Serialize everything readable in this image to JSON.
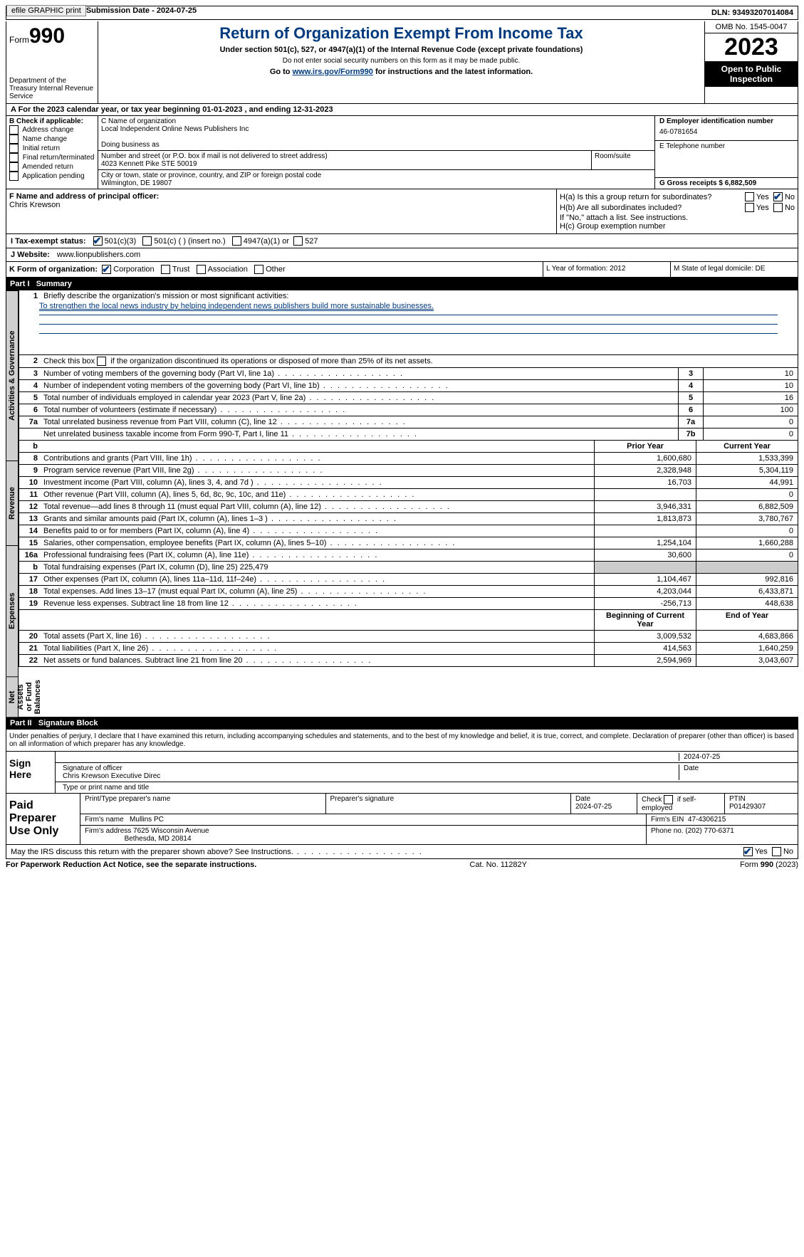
{
  "topbar": {
    "efile": "efile GRAPHIC print",
    "submission_label": "Submission Date - 2024-07-25",
    "dln_label": "DLN: 93493207014084"
  },
  "header": {
    "form_word": "Form",
    "form_num": "990",
    "dept": "Department of the Treasury Internal Revenue Service",
    "title": "Return of Organization Exempt From Income Tax",
    "subtitle": "Under section 501(c), 527, or 4947(a)(1) of the Internal Revenue Code (except private foundations)",
    "note1": "Do not enter social security numbers on this form as it may be made public.",
    "note2_pre": "Go to ",
    "note2_link": "www.irs.gov/Form990",
    "note2_post": " for instructions and the latest information.",
    "omb": "OMB No. 1545-0047",
    "year": "2023",
    "open": "Open to Public Inspection"
  },
  "lineA": "A For the 2023 calendar year, or tax year beginning 01-01-2023   , and ending 12-31-2023",
  "boxB": {
    "label": "B Check if applicable:",
    "opts": [
      "Address change",
      "Name change",
      "Initial return",
      "Final return/terminated",
      "Amended return",
      "Application pending"
    ]
  },
  "boxC": {
    "name_label": "C Name of organization",
    "name": "Local Independent Online News Publishers Inc",
    "dba_label": "Doing business as",
    "addr_label": "Number and street (or P.O. box if mail is not delivered to street address)",
    "addr": "4023 Kennett Pike STE 50019",
    "room_label": "Room/suite",
    "city_label": "City or town, state or province, country, and ZIP or foreign postal code",
    "city": "Wilmington, DE  19807"
  },
  "boxD": {
    "label": "D Employer identification number",
    "value": "46-0781654"
  },
  "boxE": {
    "label": "E Telephone number"
  },
  "boxG": {
    "label": "G Gross receipts $ 6,882,509"
  },
  "boxF": {
    "label": "F  Name and address of principal officer:",
    "value": "Chris Krewson"
  },
  "boxH": {
    "a": "H(a)  Is this a group return for subordinates?",
    "b": "H(b)  Are all subordinates included?",
    "note": "If \"No,\" attach a list. See instructions.",
    "c": "H(c)  Group exemption number",
    "yes": "Yes",
    "no": "No"
  },
  "boxI": {
    "label": "I   Tax-exempt status:",
    "o1": "501(c)(3)",
    "o2": "501(c) (  ) (insert no.)",
    "o3": "4947(a)(1) or",
    "o4": "527"
  },
  "boxJ": {
    "label": "J   Website:",
    "value": "www.lionpublishers.com"
  },
  "boxK": {
    "label": "K Form of organization:",
    "o1": "Corporation",
    "o2": "Trust",
    "o3": "Association",
    "o4": "Other"
  },
  "boxL": {
    "label": "L Year of formation: 2012"
  },
  "boxM": {
    "label": "M State of legal domicile: DE"
  },
  "part1": {
    "num": "Part I",
    "title": "Summary"
  },
  "vert": {
    "ag": "Activities & Governance",
    "rev": "Revenue",
    "exp": "Expenses",
    "na": "Net Assets or Fund Balances"
  },
  "line1": {
    "num": "1",
    "label": "Briefly describe the organization's mission or most significant activities:",
    "text": "To strengthen the local news industry by helping independent news publishers build more sustainable businesses."
  },
  "line2": {
    "num": "2",
    "label": "Check this box        if the organization discontinued its operations or disposed of more than 25% of its net assets."
  },
  "govlines": [
    {
      "n": "3",
      "d": "Number of voting members of the governing body (Part VI, line 1a)",
      "bn": "3",
      "v": "10"
    },
    {
      "n": "4",
      "d": "Number of independent voting members of the governing body (Part VI, line 1b)",
      "bn": "4",
      "v": "10"
    },
    {
      "n": "5",
      "d": "Total number of individuals employed in calendar year 2023 (Part V, line 2a)",
      "bn": "5",
      "v": "16"
    },
    {
      "n": "6",
      "d": "Total number of volunteers (estimate if necessary)",
      "bn": "6",
      "v": "100"
    },
    {
      "n": "7a",
      "d": "Total unrelated business revenue from Part VIII, column (C), line 12",
      "bn": "7a",
      "v": "0"
    },
    {
      "n": "",
      "d": "Net unrelated business taxable income from Form 990-T, Part I, line 11",
      "bn": "7b",
      "v": "0"
    }
  ],
  "colheader": {
    "prior": "Prior Year",
    "current": "Current Year",
    "begin": "Beginning of Current Year",
    "end": "End of Year"
  },
  "revlines": [
    {
      "n": "8",
      "d": "Contributions and grants (Part VIII, line 1h)",
      "p": "1,600,680",
      "c": "1,533,399"
    },
    {
      "n": "9",
      "d": "Program service revenue (Part VIII, line 2g)",
      "p": "2,328,948",
      "c": "5,304,119"
    },
    {
      "n": "10",
      "d": "Investment income (Part VIII, column (A), lines 3, 4, and 7d )",
      "p": "16,703",
      "c": "44,991"
    },
    {
      "n": "11",
      "d": "Other revenue (Part VIII, column (A), lines 5, 6d, 8c, 9c, 10c, and 11e)",
      "p": "",
      "c": "0"
    },
    {
      "n": "12",
      "d": "Total revenue—add lines 8 through 11 (must equal Part VIII, column (A), line 12)",
      "p": "3,946,331",
      "c": "6,882,509"
    }
  ],
  "explines": [
    {
      "n": "13",
      "d": "Grants and similar amounts paid (Part IX, column (A), lines 1–3 )",
      "p": "1,813,873",
      "c": "3,780,767"
    },
    {
      "n": "14",
      "d": "Benefits paid to or for members (Part IX, column (A), line 4)",
      "p": "",
      "c": "0"
    },
    {
      "n": "15",
      "d": "Salaries, other compensation, employee benefits (Part IX, column (A), lines 5–10)",
      "p": "1,254,104",
      "c": "1,660,288"
    },
    {
      "n": "16a",
      "d": "Professional fundraising fees (Part IX, column (A), line 11e)",
      "p": "30,600",
      "c": "0"
    },
    {
      "n": "b",
      "d": "Total fundraising expenses (Part IX, column (D), line 25) 225,479",
      "p": "",
      "c": "",
      "grey": true
    },
    {
      "n": "17",
      "d": "Other expenses (Part IX, column (A), lines 11a–11d, 11f–24e)",
      "p": "1,104,467",
      "c": "992,816"
    },
    {
      "n": "18",
      "d": "Total expenses. Add lines 13–17 (must equal Part IX, column (A), line 25)",
      "p": "4,203,044",
      "c": "6,433,871"
    },
    {
      "n": "19",
      "d": "Revenue less expenses. Subtract line 18 from line 12",
      "p": "-256,713",
      "c": "448,638"
    }
  ],
  "nalines": [
    {
      "n": "20",
      "d": "Total assets (Part X, line 16)",
      "p": "3,009,532",
      "c": "4,683,866"
    },
    {
      "n": "21",
      "d": "Total liabilities (Part X, line 26)",
      "p": "414,563",
      "c": "1,640,259"
    },
    {
      "n": "22",
      "d": "Net assets or fund balances. Subtract line 21 from line 20",
      "p": "2,594,969",
      "c": "3,043,607"
    }
  ],
  "part2": {
    "num": "Part II",
    "title": "Signature Block"
  },
  "perjury": "Under penalties of perjury, I declare that I have examined this return, including accompanying schedules and statements, and to the best of my knowledge and belief, it is true, correct, and complete. Declaration of preparer (other than officer) is based on all information of which preparer has any knowledge.",
  "sign": {
    "here": "Sign Here",
    "sig_label": "Signature of officer",
    "name": "Chris Krewson  Executive Direc",
    "name_label": "Type or print name and title",
    "date_label": "Date",
    "date": "2024-07-25"
  },
  "prep": {
    "label": "Paid Preparer Use Only",
    "name_label": "Print/Type preparer's name",
    "sig_label": "Preparer's signature",
    "date_label": "Date",
    "date": "2024-07-25",
    "check_label": "Check         if self-employed",
    "ptin_label": "PTIN",
    "ptin": "P01429307",
    "firm_name_label": "Firm's name",
    "firm_name": "Mullins PC",
    "firm_ein_label": "Firm's EIN",
    "firm_ein": "47-4306215",
    "firm_addr_label": "Firm's address",
    "firm_addr": "7625 Wisconsin Avenue",
    "firm_addr2": "Bethesda, MD  20814",
    "phone_label": "Phone no.",
    "phone": "(202) 770-6371"
  },
  "discuss": {
    "q": "May the IRS discuss this return with the preparer shown above? See Instructions.",
    "yes": "Yes",
    "no": "No"
  },
  "footer": {
    "left": "For Paperwork Reduction Act Notice, see the separate instructions.",
    "mid": "Cat. No. 11282Y",
    "right_pre": "Form ",
    "right_bold": "990",
    "right_post": " (2023)"
  }
}
